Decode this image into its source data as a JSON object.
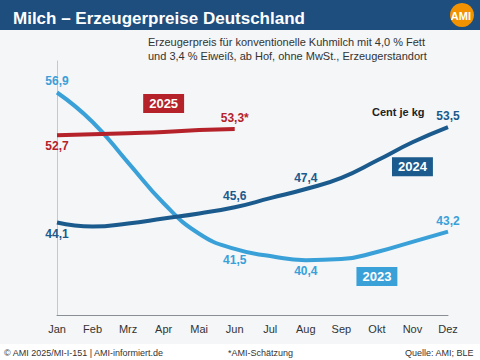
{
  "chart_data": {
    "type": "line",
    "title": "Milch – Erzeugerpreise Deutschland",
    "subtitle": "Erzeugerpreis für konventionelle Kuhmilch mit 4,0 % Fett\nund 3,4 % Eiweiß, ab Hof, ohne MwSt., Erzeugerstandort",
    "unit_label": "Cent je kg",
    "logo": "AMI",
    "footnote": "*AMI-Schätzung",
    "source": "Quelle: AMI; BLE",
    "copyright": "© AMI 2025/MI-I-151 | AMI-informiert.de",
    "categories": [
      "Jan",
      "Feb",
      "Mrz",
      "Apr",
      "Mai",
      "Jun",
      "Jul",
      "Aug",
      "Sep",
      "Okt",
      "Nov",
      "Dez"
    ],
    "ylim": [
      35,
      60
    ],
    "grid": false,
    "tick_labels": "x",
    "data_labels": true,
    "series": [
      {
        "name": "2025",
        "color": "#b5222a",
        "values": [
          52.7,
          52.8,
          52.9,
          53.0,
          53.2,
          53.3,
          null,
          null,
          null,
          null,
          null,
          null
        ],
        "value_labels": [
          "52,7",
          null,
          null,
          null,
          null,
          "53,3*",
          null,
          null,
          null,
          null,
          null,
          null
        ]
      },
      {
        "name": "2024",
        "color": "#1b5a8c",
        "values": [
          44.1,
          43.7,
          44.0,
          44.5,
          45.0,
          45.6,
          46.5,
          47.4,
          48.5,
          50.2,
          52.0,
          53.5
        ],
        "value_labels": [
          "44,1",
          null,
          null,
          null,
          null,
          "45,6",
          null,
          "47,4",
          null,
          null,
          null,
          "53,5"
        ]
      },
      {
        "name": "2023",
        "color": "#3aa0d8",
        "values": [
          56.9,
          54.0,
          50.0,
          46.0,
          43.0,
          41.5,
          40.8,
          40.4,
          40.5,
          41.2,
          42.2,
          43.2
        ],
        "value_labels": [
          "56,9",
          null,
          null,
          null,
          null,
          "41,5",
          null,
          "40,4",
          null,
          null,
          null,
          "43,2"
        ]
      }
    ]
  }
}
